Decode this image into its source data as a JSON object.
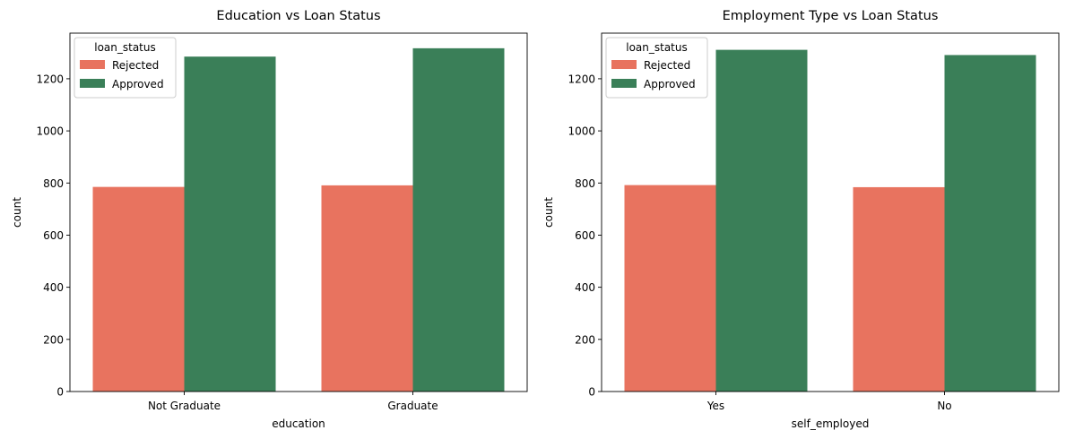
{
  "colors": {
    "rejected": "#E8735F",
    "approved": "#3A7F58"
  },
  "chart_data": [
    {
      "type": "bar",
      "title": "Education vs Loan Status",
      "xlabel": "education",
      "ylabel": "count",
      "categories": [
        "Not Graduate",
        "Graduate"
      ],
      "series": [
        {
          "name": "Rejected",
          "values": [
            785,
            791
          ]
        },
        {
          "name": "Approved",
          "values": [
            1285,
            1317
          ]
        }
      ],
      "ylim": [
        0,
        1375
      ],
      "yticks": [
        0,
        200,
        400,
        600,
        800,
        1000,
        1200
      ],
      "legend": {
        "title": "loan_status",
        "position": "top-left"
      },
      "grid": false
    },
    {
      "type": "bar",
      "title": "Employment Type vs Loan Status",
      "xlabel": "self_employed",
      "ylabel": "count",
      "categories": [
        "Yes",
        "No"
      ],
      "series": [
        {
          "name": "Rejected",
          "values": [
            792,
            784
          ]
        },
        {
          "name": "Approved",
          "values": [
            1311,
            1291
          ]
        }
      ],
      "ylim": [
        0,
        1375
      ],
      "yticks": [
        0,
        200,
        400,
        600,
        800,
        1000,
        1200
      ],
      "legend": {
        "title": "loan_status",
        "position": "top-left"
      },
      "grid": false
    }
  ]
}
